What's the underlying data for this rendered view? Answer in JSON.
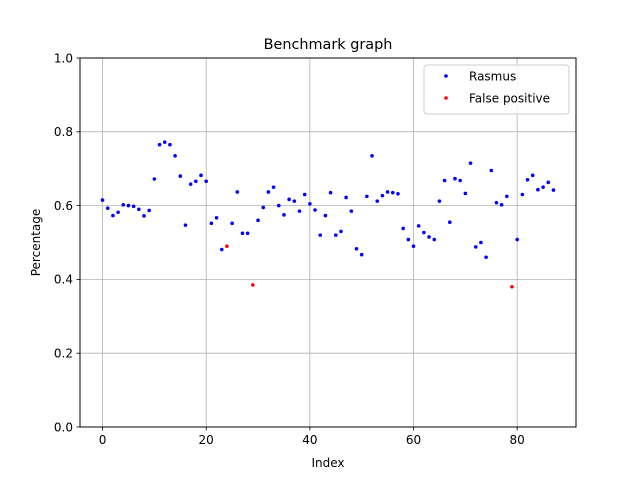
{
  "chart_data": {
    "type": "scatter",
    "title": "Benchmark graph",
    "xlabel": "Index",
    "ylabel": "Percentage",
    "xlim": [
      -4.35,
      91.35
    ],
    "ylim": [
      0.0,
      1.0
    ],
    "xticks": [
      0,
      20,
      40,
      60,
      80
    ],
    "yticks": [
      0.0,
      0.2,
      0.4,
      0.6,
      0.8,
      1.0
    ],
    "ytick_labels": [
      "0.0",
      "0.2",
      "0.4",
      "0.6",
      "0.8",
      "1.0"
    ],
    "grid": true,
    "legend_position": "top-right",
    "series": [
      {
        "name": "Rasmus",
        "color": "#0000ff",
        "points": [
          [
            0,
            0.615
          ],
          [
            1,
            0.593
          ],
          [
            2,
            0.573
          ],
          [
            3,
            0.582
          ],
          [
            4,
            0.602
          ],
          [
            5,
            0.6
          ],
          [
            6,
            0.598
          ],
          [
            7,
            0.59
          ],
          [
            8,
            0.572
          ],
          [
            9,
            0.587
          ],
          [
            10,
            0.672
          ],
          [
            11,
            0.765
          ],
          [
            12,
            0.772
          ],
          [
            13,
            0.765
          ],
          [
            14,
            0.735
          ],
          [
            15,
            0.68
          ],
          [
            16,
            0.547
          ],
          [
            17,
            0.658
          ],
          [
            18,
            0.666
          ],
          [
            19,
            0.682
          ],
          [
            20,
            0.666
          ],
          [
            21,
            0.552
          ],
          [
            22,
            0.567
          ],
          [
            23,
            0.481
          ],
          [
            25,
            0.552
          ],
          [
            26,
            0.637
          ],
          [
            27,
            0.525
          ],
          [
            28,
            0.525
          ],
          [
            30,
            0.56
          ],
          [
            31,
            0.595
          ],
          [
            32,
            0.637
          ],
          [
            33,
            0.65
          ],
          [
            34,
            0.6
          ],
          [
            35,
            0.575
          ],
          [
            36,
            0.617
          ],
          [
            37,
            0.612
          ],
          [
            38,
            0.585
          ],
          [
            39,
            0.63
          ],
          [
            40,
            0.605
          ],
          [
            41,
            0.588
          ],
          [
            42,
            0.52
          ],
          [
            43,
            0.573
          ],
          [
            44,
            0.635
          ],
          [
            45,
            0.52
          ],
          [
            46,
            0.53
          ],
          [
            47,
            0.622
          ],
          [
            48,
            0.585
          ],
          [
            49,
            0.483
          ],
          [
            50,
            0.467
          ],
          [
            51,
            0.625
          ],
          [
            52,
            0.735
          ],
          [
            53,
            0.612
          ],
          [
            54,
            0.627
          ],
          [
            55,
            0.637
          ],
          [
            56,
            0.635
          ],
          [
            57,
            0.632
          ],
          [
            58,
            0.538
          ],
          [
            59,
            0.508
          ],
          [
            60,
            0.49
          ],
          [
            61,
            0.545
          ],
          [
            62,
            0.527
          ],
          [
            63,
            0.515
          ],
          [
            64,
            0.508
          ],
          [
            65,
            0.612
          ],
          [
            66,
            0.668
          ],
          [
            67,
            0.555
          ],
          [
            68,
            0.673
          ],
          [
            69,
            0.668
          ],
          [
            70,
            0.633
          ],
          [
            71,
            0.715
          ],
          [
            72,
            0.488
          ],
          [
            73,
            0.5
          ],
          [
            74,
            0.46
          ],
          [
            75,
            0.695
          ],
          [
            76,
            0.608
          ],
          [
            77,
            0.602
          ],
          [
            78,
            0.625
          ],
          [
            80,
            0.508
          ],
          [
            81,
            0.63
          ],
          [
            82,
            0.67
          ],
          [
            83,
            0.682
          ],
          [
            84,
            0.643
          ],
          [
            85,
            0.65
          ],
          [
            86,
            0.663
          ],
          [
            87,
            0.642
          ]
        ]
      },
      {
        "name": "False positive",
        "color": "#ff0000",
        "points": [
          [
            24,
            0.49
          ],
          [
            29,
            0.385
          ],
          [
            79,
            0.38
          ]
        ]
      }
    ]
  }
}
